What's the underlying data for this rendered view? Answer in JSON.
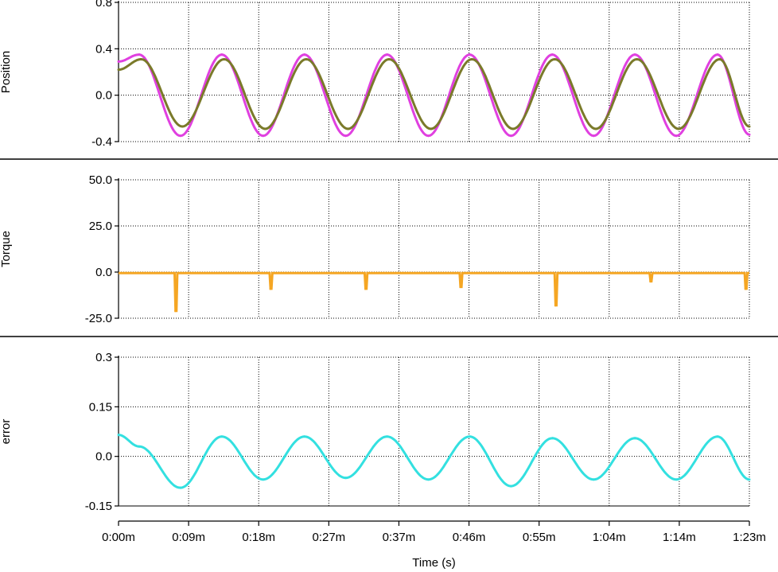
{
  "chart_data": [
    {
      "type": "line",
      "ylabel": "Position",
      "ylim": [
        -0.4,
        0.8
      ],
      "yticks": [
        "-0.4",
        "0.0",
        "0.4",
        "0.8"
      ],
      "grid": true,
      "colors": [
        "#e040e0",
        "#7a7a2a"
      ],
      "series": [
        {
          "color": "#e040e0",
          "x": [
            0,
            2.72,
            8.15,
            13.59,
            19.02,
            24.46,
            29.89,
            35.33,
            40.77,
            46.2,
            51.64,
            57.07,
            62.51,
            67.94,
            73.38,
            78.81,
            83
          ],
          "y": [
            0.29,
            0.35,
            -0.35,
            0.35,
            -0.35,
            0.35,
            -0.35,
            0.35,
            -0.35,
            0.35,
            -0.35,
            0.35,
            -0.35,
            0.35,
            -0.35,
            0.35,
            -0.34
          ]
        },
        {
          "color": "#7a7a2a",
          "x": [
            0,
            3.0,
            8.4,
            13.9,
            19.3,
            24.7,
            30.2,
            35.6,
            41.1,
            46.5,
            51.9,
            57.4,
            62.8,
            68.2,
            73.7,
            79.1,
            83
          ],
          "y": [
            0.22,
            0.31,
            -0.27,
            0.31,
            -0.29,
            0.31,
            -0.29,
            0.31,
            -0.29,
            0.31,
            -0.29,
            0.31,
            -0.29,
            0.31,
            -0.29,
            0.31,
            -0.27
          ]
        }
      ]
    },
    {
      "type": "line",
      "ylabel": "Torque",
      "ylim": [
        -25,
        50
      ],
      "yticks": [
        "-25.0",
        "0.0",
        "25.0",
        "50.0"
      ],
      "grid": true,
      "colors": [
        "#f5a623"
      ],
      "series": [
        {
          "color": "#f5a623",
          "baseline": -0.5,
          "spikes": [
            {
              "x": 7.5,
              "y": -21
            },
            {
              "x": 20.0,
              "y": -9
            },
            {
              "x": 32.5,
              "y": -9
            },
            {
              "x": 45.0,
              "y": -8
            },
            {
              "x": 57.5,
              "y": -18
            },
            {
              "x": 70.0,
              "y": -5
            },
            {
              "x": 82.5,
              "y": -9
            }
          ]
        }
      ]
    },
    {
      "type": "line",
      "ylabel": "error",
      "ylim": [
        -0.15,
        0.3
      ],
      "yticks": [
        "-0.15",
        "0.0",
        "0.15",
        "0.3"
      ],
      "grid": true,
      "colors": [
        "#33e0e0"
      ],
      "series": [
        {
          "color": "#33e0e0",
          "x": [
            0,
            2.72,
            8.15,
            13.59,
            19.02,
            24.46,
            29.89,
            35.33,
            40.77,
            46.2,
            51.64,
            57.07,
            62.51,
            67.94,
            73.38,
            78.81,
            83
          ],
          "y": [
            0.065,
            0.03,
            -0.095,
            0.06,
            -0.07,
            0.06,
            -0.065,
            0.06,
            -0.07,
            0.06,
            -0.09,
            0.055,
            -0.07,
            0.055,
            -0.07,
            0.06,
            -0.07
          ]
        }
      ]
    }
  ],
  "xaxis": {
    "label": "Time (s)",
    "range": [
      0,
      83
    ],
    "ticks": [
      "0:00m",
      "0:09m",
      "0:18m",
      "0:27m",
      "0:37m",
      "0:46m",
      "0:55m",
      "1:04m",
      "1:14m",
      "1:23m"
    ]
  }
}
